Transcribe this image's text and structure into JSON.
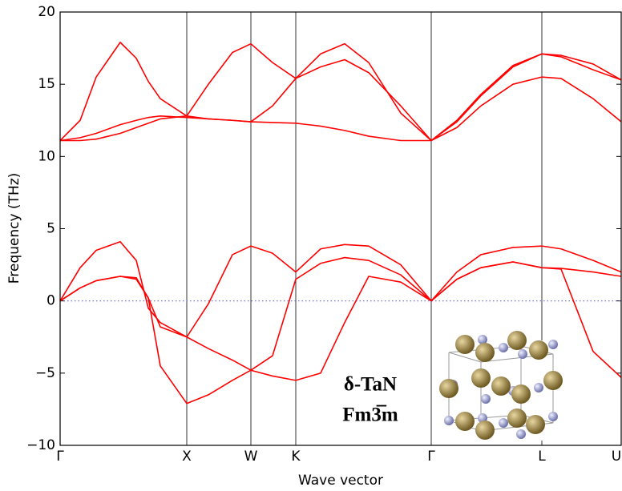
{
  "chart_data": {
    "type": "line",
    "xlabel": "Wave vector",
    "ylabel": "Frequency  (THz)",
    "annotations": [
      "δ-TaN",
      "Fm3̅m"
    ],
    "x": [
      0,
      0.25,
      0.45,
      0.75,
      0.95,
      1.1,
      1.25,
      1.58,
      1.85,
      2.15,
      2.38,
      2.65,
      2.94,
      3.25,
      3.55,
      3.85,
      4.25,
      4.63,
      4.95,
      5.25,
      5.65,
      6.01,
      6.25,
      6.65,
      7.0
    ],
    "xlim": [
      0,
      7.0
    ],
    "xticks": [
      {
        "value": 0,
        "label": "Γ"
      },
      {
        "value": 1.58,
        "label": "X"
      },
      {
        "value": 2.38,
        "label": "W"
      },
      {
        "value": 2.94,
        "label": "K"
      },
      {
        "value": 4.63,
        "label": "Γ"
      },
      {
        "value": 6.01,
        "label": "L"
      },
      {
        "value": 7.0,
        "label": "U"
      }
    ],
    "ylim": [
      -10,
      20
    ],
    "yticks": [
      {
        "value": -10,
        "label": "−10"
      },
      {
        "value": -5,
        "label": "−5"
      },
      0,
      5,
      10,
      15,
      20
    ],
    "grid_x": true,
    "reference_line": 0,
    "reference_color": "#6666cc",
    "series": [
      {
        "color": "#ff0000",
        "values": [
          0,
          2.3,
          3.5,
          4.1,
          2.8,
          -0.5,
          -1.5,
          -2.5,
          -0.2,
          3.2,
          3.8,
          3.3,
          2.0,
          3.6,
          3.9,
          3.8,
          2.5,
          0,
          2.0,
          3.2,
          3.7,
          3.8,
          3.6,
          2.8,
          2.0
        ]
      },
      {
        "color": "#ff0000",
        "values": [
          0,
          0.9,
          1.4,
          1.7,
          1.6,
          0.2,
          -1.8,
          -2.5,
          -3.3,
          -4.1,
          -4.8,
          -3.8,
          1.5,
          2.6,
          3.0,
          2.8,
          1.8,
          0,
          1.5,
          2.3,
          2.7,
          2.3,
          2.2,
          -3.5,
          -5.3
        ]
      },
      {
        "color": "#ff0000",
        "values": [
          0,
          0.9,
          1.4,
          1.7,
          1.5,
          0.2,
          -4.5,
          -7.1,
          -6.5,
          -5.5,
          -4.8,
          -5.2,
          -5.5,
          -5.0,
          -1.5,
          1.7,
          1.3,
          0,
          1.5,
          2.3,
          2.7,
          2.3,
          2.25,
          2.0,
          1.7
        ]
      },
      {
        "color": "#ff0000",
        "values": [
          11.1,
          12.5,
          15.5,
          17.9,
          16.8,
          15.2,
          14.0,
          12.8,
          15.0,
          17.2,
          17.8,
          16.5,
          15.4,
          17.1,
          17.8,
          16.5,
          13.0,
          11.1,
          12.5,
          14.3,
          16.3,
          17.1,
          17.0,
          16.4,
          15.3
        ]
      },
      {
        "color": "#ff0000",
        "values": [
          11.1,
          11.1,
          11.2,
          11.6,
          12.0,
          12.3,
          12.6,
          12.8,
          12.6,
          12.5,
          12.4,
          13.5,
          15.4,
          16.2,
          16.7,
          15.8,
          13.5,
          11.1,
          12.4,
          14.2,
          16.2,
          17.1,
          16.9,
          16.0,
          15.3
        ]
      },
      {
        "color": "#ff0000",
        "values": [
          11.1,
          11.3,
          11.6,
          12.2,
          12.5,
          12.7,
          12.8,
          12.7,
          12.6,
          12.5,
          12.4,
          12.35,
          12.3,
          12.1,
          11.8,
          11.4,
          11.1,
          11.1,
          12.0,
          13.5,
          15.0,
          15.5,
          15.4,
          14.0,
          12.4
        ]
      }
    ]
  }
}
